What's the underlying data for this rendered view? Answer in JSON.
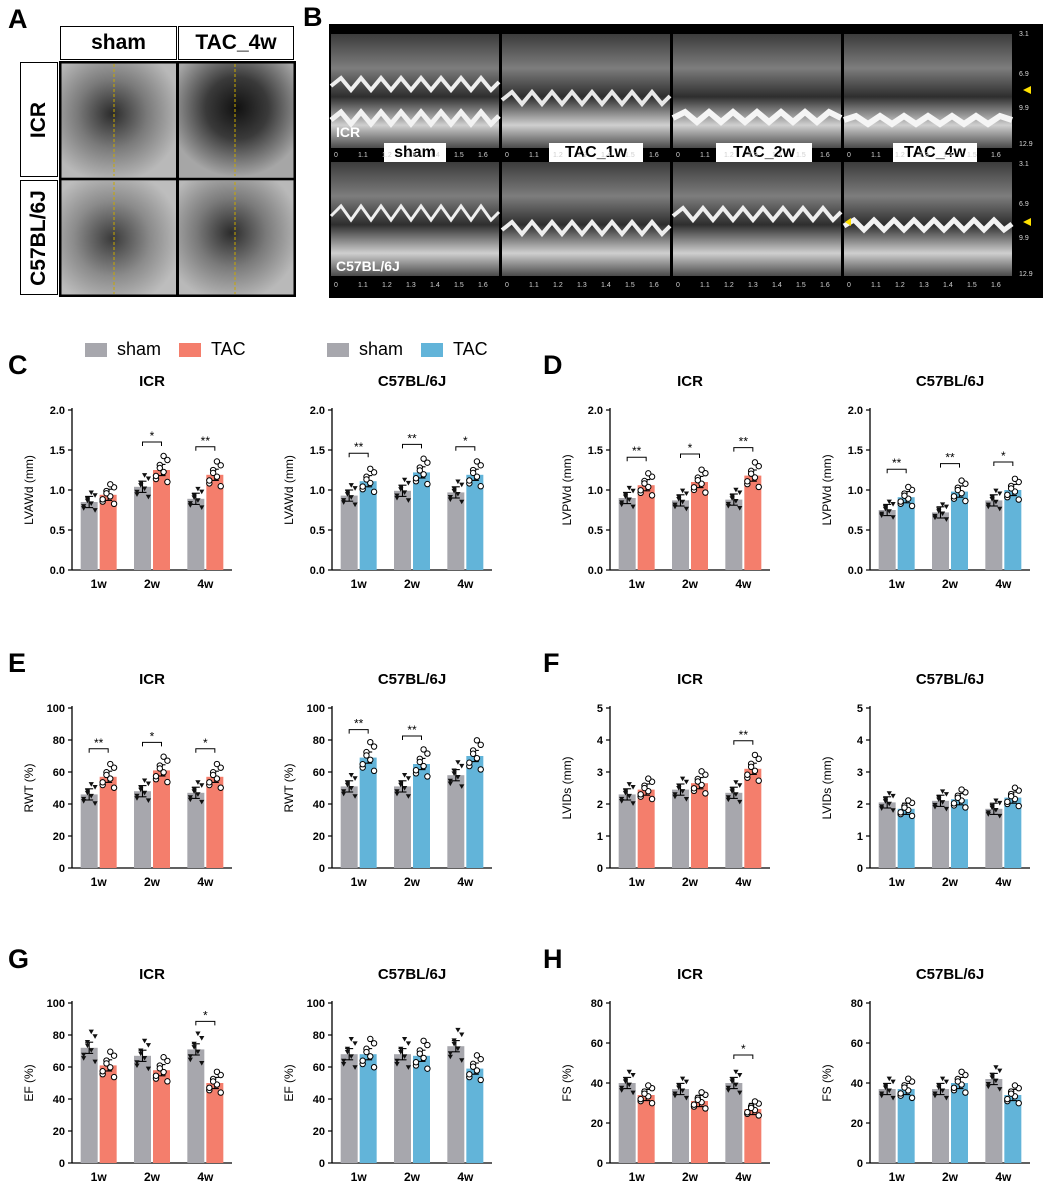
{
  "panel_labels": {
    "A": "A",
    "B": "B",
    "C": "C",
    "D": "D",
    "E": "E",
    "F": "F",
    "G": "G",
    "H": "H"
  },
  "panelA": {
    "col_headers": [
      "sham",
      "TAC_4w"
    ],
    "row_labels": [
      "ICR",
      "C57BL/6J"
    ]
  },
  "panelB": {
    "row_labels": [
      "ICR",
      "C57BL/6J"
    ],
    "tags": [
      "sham",
      "TAC_1w",
      "TAC_2w",
      "TAC_4w"
    ],
    "time_ticks": [
      "0",
      "1.1",
      "1.2",
      "1.3",
      "1.4",
      "1.5",
      "1.6"
    ],
    "depth_ticks": [
      "3.1",
      "6.9",
      "9.9",
      "12.9"
    ]
  },
  "legend_left": {
    "items": [
      "sham",
      "TAC"
    ],
    "colors": [
      "#a7a7ad",
      "#f47e6c"
    ]
  },
  "legend_right": {
    "items": [
      "sham",
      "TAC"
    ],
    "colors": [
      "#a7a7ad",
      "#62b4d9"
    ]
  },
  "colors": {
    "sham": "#a7a7ad",
    "tac_icr": "#f47e6c",
    "tac_c57": "#62b4d9"
  },
  "chart_data": [
    {
      "id": "C-ICR",
      "type": "bar",
      "title": "ICR",
      "ylabel": "LVAWd (mm)",
      "categories": [
        "1w",
        "2w",
        "4w"
      ],
      "ylim": [
        0,
        2.0
      ],
      "yticks": [
        "0.0",
        "0.5",
        "1.0",
        "1.5",
        "2.0"
      ],
      "series": [
        {
          "name": "sham",
          "values": [
            0.85,
            1.04,
            0.89
          ]
        },
        {
          "name": "TAC",
          "values": [
            0.94,
            1.25,
            1.19
          ]
        }
      ],
      "sig": [
        {
          "group": 1,
          "label": "*"
        },
        {
          "group": 2,
          "label": "**"
        }
      ]
    },
    {
      "id": "C-C57",
      "type": "bar",
      "title": "C57BL/6J",
      "ylabel": "LVAWd (mm)",
      "categories": [
        "1w",
        "2w",
        "4w"
      ],
      "ylim": [
        0,
        2.0
      ],
      "yticks": [
        "0.0",
        "0.5",
        "1.0",
        "1.5",
        "2.0"
      ],
      "series": [
        {
          "name": "sham",
          "values": [
            0.93,
            0.99,
            0.97
          ]
        },
        {
          "name": "TAC",
          "values": [
            1.11,
            1.22,
            1.19
          ]
        }
      ],
      "sig": [
        {
          "group": 0,
          "label": "**"
        },
        {
          "group": 1,
          "label": "**"
        },
        {
          "group": 2,
          "label": "*"
        }
      ]
    },
    {
      "id": "D-ICR",
      "type": "bar",
      "title": "ICR",
      "ylabel": "LVPWd (mm)",
      "categories": [
        "1w",
        "2w",
        "4w"
      ],
      "ylim": [
        0,
        2.0
      ],
      "yticks": [
        "0.0",
        "0.5",
        "1.0",
        "1.5",
        "2.0"
      ],
      "series": [
        {
          "name": "sham",
          "values": [
            0.9,
            0.87,
            0.88
          ]
        },
        {
          "name": "TAC",
          "values": [
            1.06,
            1.1,
            1.18
          ]
        }
      ],
      "sig": [
        {
          "group": 0,
          "label": "**"
        },
        {
          "group": 1,
          "label": "*"
        },
        {
          "group": 2,
          "label": "**"
        }
      ]
    },
    {
      "id": "D-C57",
      "type": "bar",
      "title": "C57BL/6J",
      "ylabel": "LVPWd (mm)",
      "categories": [
        "1w",
        "2w",
        "4w"
      ],
      "ylim": [
        0,
        2.0
      ],
      "yticks": [
        "0.0",
        "0.5",
        "1.0",
        "1.5",
        "2.0"
      ],
      "series": [
        {
          "name": "sham",
          "values": [
            0.75,
            0.72,
            0.87
          ]
        },
        {
          "name": "TAC",
          "values": [
            0.91,
            0.98,
            1.0
          ]
        }
      ],
      "sig": [
        {
          "group": 0,
          "label": "**"
        },
        {
          "group": 1,
          "label": "**"
        },
        {
          "group": 2,
          "label": "*"
        }
      ]
    },
    {
      "id": "E-ICR",
      "type": "bar",
      "title": "ICR",
      "ylabel": "RWT (%)",
      "categories": [
        "1w",
        "2w",
        "4w"
      ],
      "ylim": [
        0,
        100
      ],
      "yticks": [
        "0",
        "20",
        "40",
        "60",
        "80",
        "100"
      ],
      "series": [
        {
          "name": "sham",
          "values": [
            46,
            48,
            47
          ]
        },
        {
          "name": "TAC",
          "values": [
            57,
            61,
            57
          ]
        }
      ],
      "sig": [
        {
          "group": 0,
          "label": "**"
        },
        {
          "group": 1,
          "label": "*"
        },
        {
          "group": 2,
          "label": "*"
        }
      ]
    },
    {
      "id": "E-C57",
      "type": "bar",
      "title": "C57BL/6J",
      "ylabel": "RWT (%)",
      "categories": [
        "1w",
        "2w",
        "4w"
      ],
      "ylim": [
        0,
        100
      ],
      "yticks": [
        "0",
        "20",
        "40",
        "60",
        "80",
        "100"
      ],
      "series": [
        {
          "name": "sham",
          "values": [
            51,
            51,
            58
          ]
        },
        {
          "name": "TAC",
          "values": [
            69,
            65,
            70
          ]
        }
      ],
      "sig": [
        {
          "group": 0,
          "label": "**"
        },
        {
          "group": 1,
          "label": "**"
        }
      ]
    },
    {
      "id": "F-ICR",
      "type": "bar",
      "title": "ICR",
      "ylabel": "LVIDs (mm)",
      "categories": [
        "1w",
        "2w",
        "4w"
      ],
      "ylim": [
        0,
        5
      ],
      "yticks": [
        "0",
        "1",
        "2",
        "3",
        "4",
        "5"
      ],
      "series": [
        {
          "name": "sham",
          "values": [
            2.3,
            2.45,
            2.35
          ]
        },
        {
          "name": "TAC",
          "values": [
            2.45,
            2.65,
            3.1
          ]
        }
      ],
      "sig": [
        {
          "group": 2,
          "label": "**"
        }
      ]
    },
    {
      "id": "F-C57",
      "type": "bar",
      "title": "C57BL/6J",
      "ylabel": "LVIDs (mm)",
      "categories": [
        "1w",
        "2w",
        "4w"
      ],
      "ylim": [
        0,
        5
      ],
      "yticks": [
        "0",
        "1",
        "2",
        "3",
        "4",
        "5"
      ],
      "series": [
        {
          "name": "sham",
          "values": [
            2.05,
            2.1,
            1.85
          ]
        },
        {
          "name": "TAC",
          "values": [
            1.85,
            2.15,
            2.2
          ]
        }
      ],
      "sig": []
    },
    {
      "id": "G-ICR",
      "type": "bar",
      "title": "ICR",
      "ylabel": "EF (%)",
      "categories": [
        "1w",
        "2w",
        "4w"
      ],
      "ylim": [
        0,
        100
      ],
      "yticks": [
        "0",
        "20",
        "40",
        "60",
        "80",
        "100"
      ],
      "series": [
        {
          "name": "sham",
          "values": [
            72,
            67,
            71
          ]
        },
        {
          "name": "TAC",
          "values": [
            61,
            58,
            50
          ]
        }
      ],
      "sig": [
        {
          "group": 2,
          "label": "*"
        }
      ]
    },
    {
      "id": "G-C57",
      "type": "bar",
      "title": "C57BL/6J",
      "ylabel": "EF (%)",
      "categories": [
        "1w",
        "2w",
        "4w"
      ],
      "ylim": [
        0,
        100
      ],
      "yticks": [
        "0",
        "20",
        "40",
        "60",
        "80",
        "100"
      ],
      "series": [
        {
          "name": "sham",
          "values": [
            68,
            68,
            73
          ]
        },
        {
          "name": "TAC",
          "values": [
            68,
            67,
            59
          ]
        }
      ],
      "sig": []
    },
    {
      "id": "H-ICR",
      "type": "bar",
      "title": "ICR",
      "ylabel": "FS (%)",
      "categories": [
        "1w",
        "2w",
        "4w"
      ],
      "ylim": [
        0,
        80
      ],
      "yticks": [
        "0",
        "20",
        "40",
        "60",
        "80"
      ],
      "series": [
        {
          "name": "sham",
          "values": [
            40,
            37,
            40
          ]
        },
        {
          "name": "TAC",
          "values": [
            34,
            31,
            27
          ]
        }
      ],
      "sig": [
        {
          "group": 2,
          "label": "*"
        }
      ]
    },
    {
      "id": "H-C57",
      "type": "bar",
      "title": "C57BL/6J",
      "ylabel": "FS (%)",
      "categories": [
        "1w",
        "2w",
        "4w"
      ],
      "ylim": [
        0,
        80
      ],
      "yticks": [
        "0",
        "20",
        "40",
        "60",
        "80"
      ],
      "series": [
        {
          "name": "sham",
          "values": [
            37,
            37,
            42
          ]
        },
        {
          "name": "TAC",
          "values": [
            37,
            40,
            34
          ]
        }
      ],
      "sig": []
    }
  ]
}
